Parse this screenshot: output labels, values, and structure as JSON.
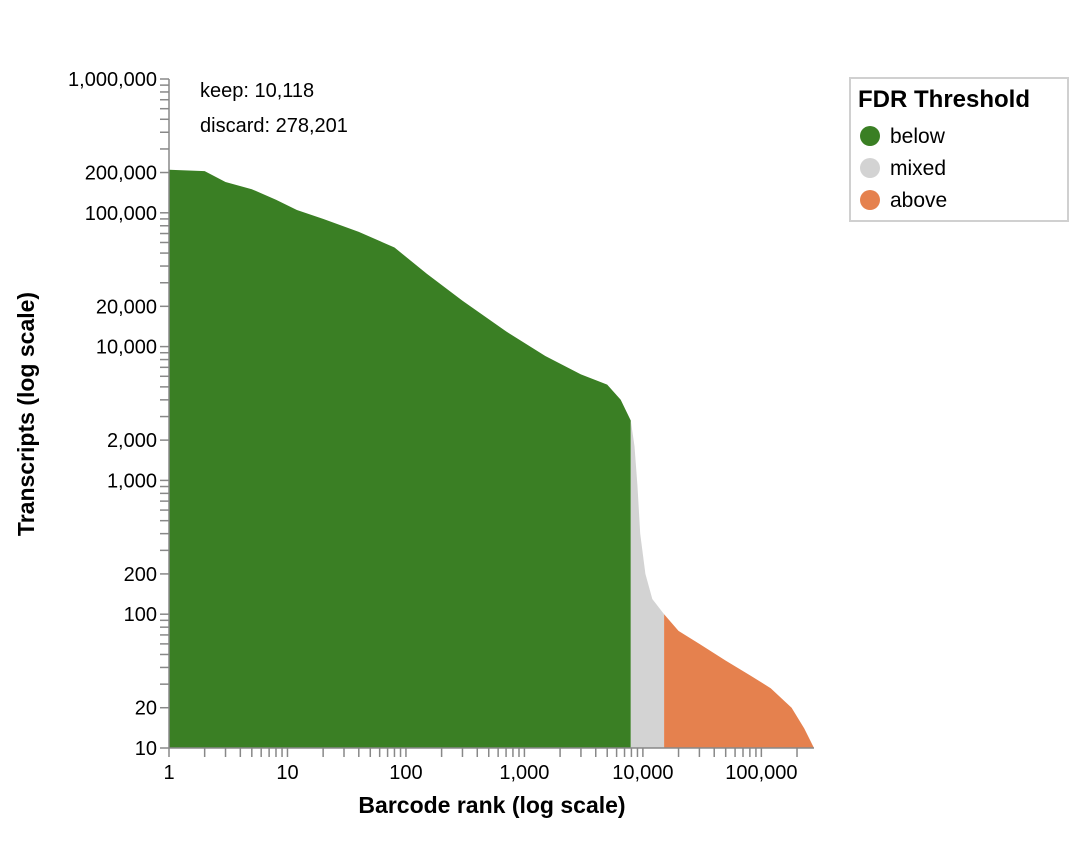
{
  "chart_data": {
    "type": "area",
    "xlabel": "Barcode rank (log scale)",
    "ylabel": "Transcripts (log scale)",
    "x_scale": "log",
    "y_scale": "log",
    "xlim": [
      1,
      278201
    ],
    "ylim": [
      10,
      1000000
    ],
    "x_ticks": [
      {
        "value": 1,
        "label": "1"
      },
      {
        "value": 10,
        "label": "10"
      },
      {
        "value": 100,
        "label": "100"
      },
      {
        "value": 1000,
        "label": "1,000"
      },
      {
        "value": 10000,
        "label": "10,000"
      },
      {
        "value": 100000,
        "label": "100,000"
      }
    ],
    "y_ticks": [
      {
        "value": 10,
        "label": "10"
      },
      {
        "value": 20,
        "label": "20"
      },
      {
        "value": 100,
        "label": "100"
      },
      {
        "value": 200,
        "label": "200"
      },
      {
        "value": 1000,
        "label": "1,000"
      },
      {
        "value": 2000,
        "label": "2,000"
      },
      {
        "value": 10000,
        "label": "10,000"
      },
      {
        "value": 20000,
        "label": "20,000"
      },
      {
        "value": 100000,
        "label": "100,000"
      },
      {
        "value": 200000,
        "label": "200,000"
      },
      {
        "value": 1000000,
        "label": "1,000,000"
      }
    ],
    "annotations": [
      "keep: 10,118",
      "discard: 278,201"
    ],
    "legend": {
      "title": "FDR Threshold",
      "position": "top-right",
      "entries": [
        {
          "name": "below",
          "color": "#3a7f24"
        },
        {
          "name": "mixed",
          "color": "#d3d3d3"
        },
        {
          "name": "above",
          "color": "#e5814e"
        }
      ]
    },
    "series": [
      {
        "name": "below",
        "color": "#3a7f24",
        "points": [
          [
            1,
            210000
          ],
          [
            2,
            205000
          ],
          [
            3,
            170000
          ],
          [
            5,
            150000
          ],
          [
            8,
            125000
          ],
          [
            12,
            105000
          ],
          [
            20,
            90000
          ],
          [
            40,
            72000
          ],
          [
            80,
            55000
          ],
          [
            150,
            35000
          ],
          [
            300,
            22000
          ],
          [
            700,
            13000
          ],
          [
            1500,
            8500
          ],
          [
            3000,
            6200
          ],
          [
            5000,
            5200
          ],
          [
            6500,
            4000
          ],
          [
            7900,
            2800
          ]
        ]
      },
      {
        "name": "mixed",
        "color": "#d3d3d3",
        "points": [
          [
            7900,
            2800
          ],
          [
            8500,
            1800
          ],
          [
            9000,
            900
          ],
          [
            9500,
            400
          ],
          [
            10500,
            200
          ],
          [
            12000,
            130
          ],
          [
            15100,
            100
          ]
        ]
      },
      {
        "name": "above",
        "color": "#e5814e",
        "points": [
          [
            15100,
            100
          ],
          [
            20000,
            75
          ],
          [
            30000,
            60
          ],
          [
            50000,
            45
          ],
          [
            80000,
            35
          ],
          [
            120000,
            28
          ],
          [
            180000,
            20
          ],
          [
            230000,
            14
          ],
          [
            278201,
            10
          ]
        ]
      }
    ]
  }
}
